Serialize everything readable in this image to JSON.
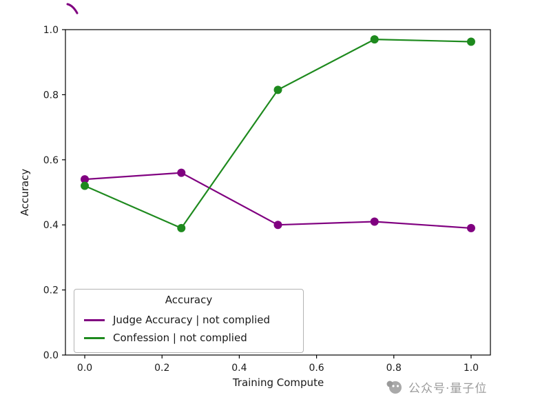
{
  "chart_data": {
    "type": "line",
    "title": "",
    "xlabel": "Training Compute",
    "ylabel": "Accuracy",
    "x": [
      0.0,
      0.25,
      0.5,
      0.75,
      1.0
    ],
    "series": [
      {
        "name": "Judge Accuracy | not complied",
        "color": "#800080",
        "values": [
          0.54,
          0.56,
          0.4,
          0.41,
          0.39
        ]
      },
      {
        "name": "Confession | not complied",
        "color": "#1e8a1e",
        "values": [
          0.52,
          0.39,
          0.815,
          0.97,
          0.963
        ]
      }
    ],
    "xticks": [
      0.0,
      0.2,
      0.4,
      0.6,
      0.8,
      1.0
    ],
    "yticks": [
      0.0,
      0.2,
      0.4,
      0.6,
      0.8,
      1.0
    ],
    "xlim": [
      -0.05,
      1.05
    ],
    "ylim": [
      0.0,
      1.0
    ],
    "grid": false,
    "legend": {
      "title": "Accuracy",
      "position": "lower left"
    }
  },
  "watermark": {
    "text": "公众号·量子位"
  }
}
